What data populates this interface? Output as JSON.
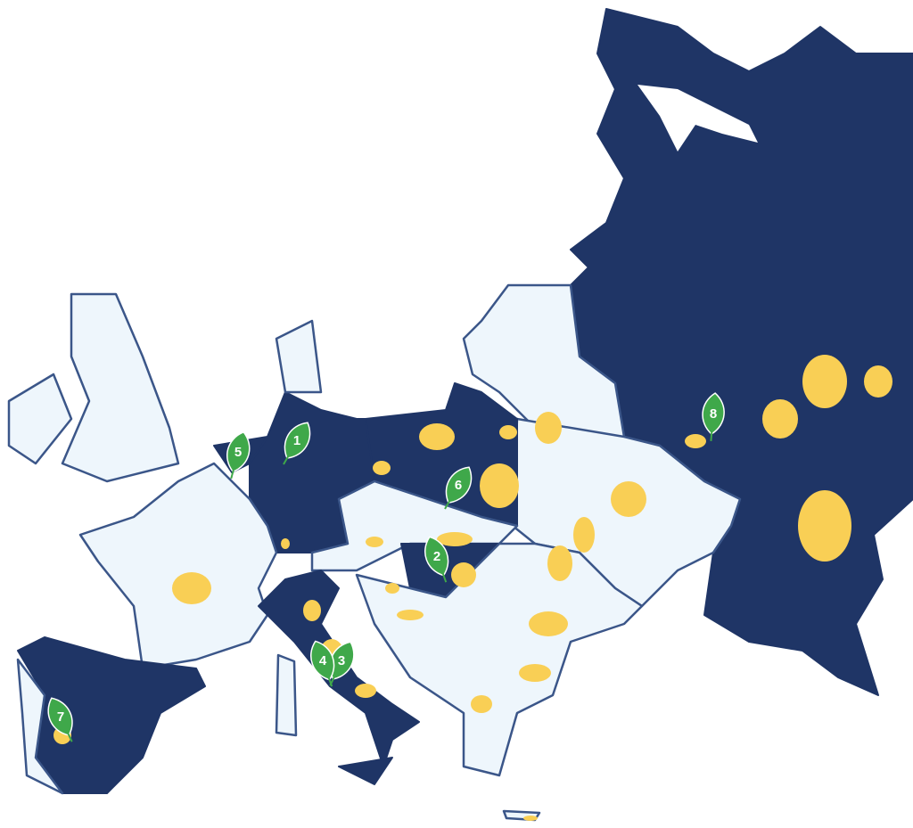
{
  "markers": [
    {
      "label": 1
    },
    {
      "label": 2
    },
    {
      "label": 3
    },
    {
      "label": 4
    },
    {
      "label": 5
    },
    {
      "label": 6
    },
    {
      "label": 7
    },
    {
      "label": 8
    }
  ]
}
